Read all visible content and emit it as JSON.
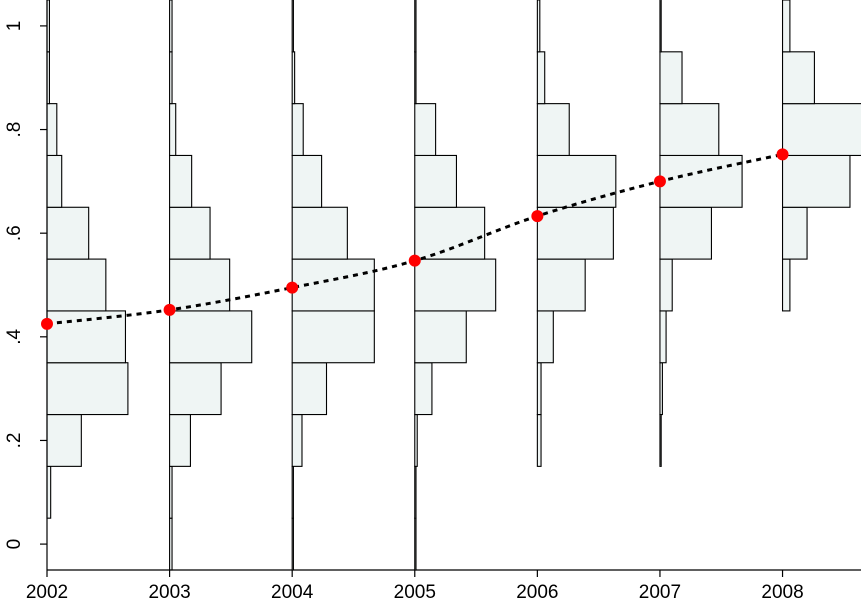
{
  "chart_data": {
    "type": "histogram-by-year",
    "title": "",
    "xlabel": "",
    "ylabel": "",
    "xlim": [
      2002,
      2008.64
    ],
    "ylim": [
      -0.05,
      1.05
    ],
    "x_ticks": [
      2002,
      2003,
      2004,
      2005,
      2006,
      2007,
      2008
    ],
    "x_tick_labels": [
      "2002",
      "2003",
      "2004",
      "2005",
      "2006",
      "2007",
      "2008"
    ],
    "y_ticks": [
      0,
      0.2,
      0.4,
      0.6,
      0.8,
      1
    ],
    "y_tick_labels": [
      "0",
      ".2",
      ".4",
      ".6",
      ".8",
      "1"
    ],
    "bin_edges": [
      -0.05,
      0.05,
      0.15,
      0.25,
      0.35,
      0.45,
      0.55,
      0.65,
      0.75,
      0.85,
      0.95,
      1.05
    ],
    "bin_width_unit_note": "",
    "histograms": [
      {
        "year": 2002,
        "widths": [
          0,
          0.03,
          0.28,
          0.66,
          0.64,
          0.48,
          0.34,
          0.12,
          0.08,
          0.02,
          0.02
        ]
      },
      {
        "year": 2003,
        "widths": [
          0.02,
          0.02,
          0.17,
          0.42,
          0.67,
          0.49,
          0.33,
          0.18,
          0.05,
          0.02,
          0.02
        ]
      },
      {
        "year": 2004,
        "widths": [
          0.01,
          0.01,
          0.08,
          0.28,
          0.67,
          0.67,
          0.45,
          0.24,
          0.09,
          0.02,
          0.01
        ]
      },
      {
        "year": 2005,
        "widths": [
          0.01,
          0.01,
          0.02,
          0.14,
          0.42,
          0.66,
          0.57,
          0.34,
          0.17,
          0.01,
          0.01
        ]
      },
      {
        "year": 2006,
        "widths": [
          0.0,
          0.0,
          0.03,
          0.03,
          0.13,
          0.39,
          0.62,
          0.64,
          0.26,
          0.06,
          0.02
        ]
      },
      {
        "year": 2007,
        "widths": [
          0.0,
          0.0,
          0.01,
          0.02,
          0.05,
          0.1,
          0.42,
          0.67,
          0.48,
          0.18,
          0.01
        ]
      },
      {
        "year": 2008,
        "widths": [
          0.0,
          0.0,
          0.0,
          0.0,
          0.0,
          0.06,
          0.2,
          0.55,
          0.82,
          0.26,
          0.06
        ]
      }
    ],
    "series": [
      {
        "type": "line",
        "style": "dashed",
        "color": "#000000",
        "marker_color": "#ff0000",
        "x": [
          2002,
          2003,
          2004,
          2005,
          2006,
          2007,
          2008
        ],
        "y": [
          0.425,
          0.452,
          0.495,
          0.547,
          0.633,
          0.7,
          0.752
        ]
      }
    ],
    "grid": false,
    "legend": "none"
  }
}
